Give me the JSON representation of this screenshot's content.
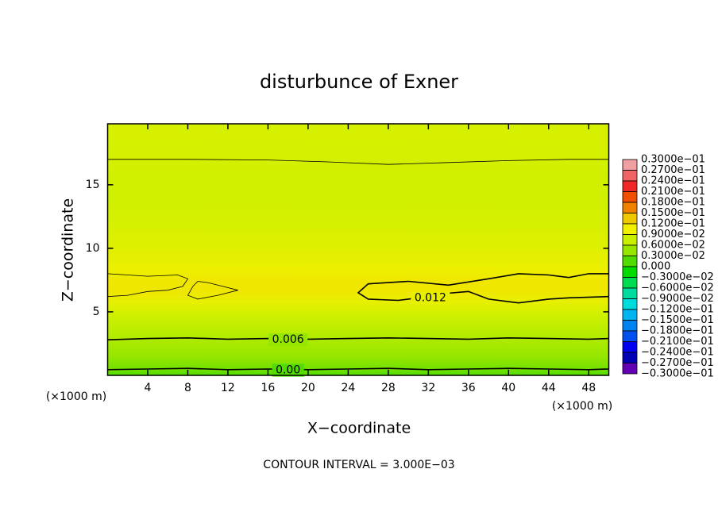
{
  "chart_data": {
    "type": "contour",
    "title": "disturbunce of Exner",
    "x_label": "X−coordinate",
    "y_label": "Z−coordinate",
    "x_unit_left": "(×1000 m)",
    "x_unit_right": "(×1000 m)",
    "footnote": "CONTOUR INTERVAL = 3.000E−03",
    "xlim": [
      0,
      50
    ],
    "ylim": [
      0,
      19.8
    ],
    "xticks": [
      4,
      8,
      12,
      16,
      20,
      24,
      28,
      32,
      36,
      40,
      44,
      48
    ],
    "yticks": [
      5,
      10,
      15
    ],
    "colorbar": {
      "levels": [
        {
          "value": 0.03,
          "label": "0.3000e−01"
        },
        {
          "value": 0.027,
          "label": "0.2700e−01"
        },
        {
          "value": 0.024,
          "label": "0.2400e−01"
        },
        {
          "value": 0.021,
          "label": "0.2100e−01"
        },
        {
          "value": 0.018,
          "label": "0.1800e−01"
        },
        {
          "value": 0.015,
          "label": "0.1500e−01"
        },
        {
          "value": 0.012,
          "label": "0.1200e−01"
        },
        {
          "value": 0.009,
          "label": "0.9000e−02"
        },
        {
          "value": 0.006,
          "label": "0.6000e−02"
        },
        {
          "value": 0.003,
          "label": "0.3000e−02"
        },
        {
          "value": 0,
          "label": "0.000"
        },
        {
          "value": -0.003,
          "label": "−0.3000e−02"
        },
        {
          "value": -0.006,
          "label": "−0.6000e−02"
        },
        {
          "value": -0.009,
          "label": "−0.9000e−02"
        },
        {
          "value": -0.012,
          "label": "−0.1200e−01"
        },
        {
          "value": -0.015,
          "label": "−0.1500e−01"
        },
        {
          "value": -0.018,
          "label": "−0.1800e−01"
        },
        {
          "value": -0.021,
          "label": "−0.2100e−01"
        },
        {
          "value": -0.024,
          "label": "−0.2400e−01"
        },
        {
          "value": -0.027,
          "label": "−0.2700e−01"
        },
        {
          "value": -0.03,
          "label": "−0.3000e−01"
        }
      ],
      "colors": [
        "#f0a0a0",
        "#f06464",
        "#f02828",
        "#f05000",
        "#f08200",
        "#f0c800",
        "#f0f000",
        "#c8f000",
        "#96e600",
        "#50dc00",
        "#00dc00",
        "#00dc50",
        "#00dca0",
        "#00dcdc",
        "#00b4f0",
        "#0082f0",
        "#0050f0",
        "#0000f0",
        "#0000b4",
        "#6400b4"
      ]
    },
    "profile": {
      "z": [
        0,
        0.5,
        1.5,
        2.9,
        3.8,
        4.8,
        5.8,
        6.6,
        7.4,
        8.4,
        10,
        12,
        14,
        16,
        17,
        19.8
      ],
      "values": [
        0.0015,
        0.003,
        0.0045,
        0.006,
        0.007,
        0.008,
        0.0098,
        0.0112,
        0.0112,
        0.0102,
        0.0092,
        0.0085,
        0.008,
        0.0082,
        0.0084,
        0.0086
      ]
    },
    "contours": [
      {
        "label": "0.00",
        "label_x": 18,
        "label_z": 0.4,
        "x": [
          0,
          4,
          8,
          12,
          16,
          20,
          24,
          28,
          32,
          36,
          40,
          44,
          48,
          50
        ],
        "z": [
          0.45,
          0.5,
          0.55,
          0.45,
          0.5,
          0.45,
          0.5,
          0.55,
          0.45,
          0.5,
          0.55,
          0.5,
          0.45,
          0.5
        ]
      },
      {
        "label": "0.006",
        "label_x": 18,
        "label_z": 2.8,
        "x": [
          0,
          4,
          8,
          12,
          16,
          20,
          24,
          28,
          32,
          36,
          40,
          44,
          48,
          50
        ],
        "z": [
          2.8,
          2.9,
          2.95,
          2.85,
          2.9,
          2.85,
          2.9,
          2.95,
          2.9,
          2.85,
          2.95,
          2.9,
          2.85,
          2.9
        ]
      },
      {
        "x": [
          0,
          8,
          16,
          22,
          28,
          34,
          40,
          46,
          50
        ],
        "z": [
          17,
          17,
          16.95,
          16.8,
          16.6,
          16.75,
          16.9,
          17,
          17
        ]
      },
      {
        "x": [
          0,
          4,
          7,
          8,
          7.5,
          6,
          4,
          2,
          0
        ],
        "z": [
          8.0,
          7.8,
          7.9,
          7.6,
          7.0,
          6.7,
          6.6,
          6.3,
          6.2
        ]
      },
      {
        "x": [
          8.5,
          9,
          10,
          11.5,
          13,
          11,
          9,
          8,
          8.5
        ],
        "z": [
          7.0,
          7.4,
          7.3,
          7.0,
          6.7,
          6.3,
          6.0,
          6.3,
          7.0
        ]
      },
      {
        "label": "0.012",
        "label_x": 32.2,
        "label_z": 6.1,
        "x": [
          50,
          48,
          46,
          44,
          41,
          38,
          34,
          30,
          26,
          25,
          26,
          29,
          31,
          33,
          36,
          38,
          41,
          44,
          46,
          50
        ],
        "z": [
          8.0,
          8.0,
          7.7,
          7.9,
          8.0,
          7.6,
          7.1,
          7.4,
          7.2,
          6.5,
          6.0,
          5.9,
          6.1,
          6.4,
          6.6,
          6.0,
          5.7,
          6.0,
          6.1,
          6.2
        ]
      }
    ]
  }
}
